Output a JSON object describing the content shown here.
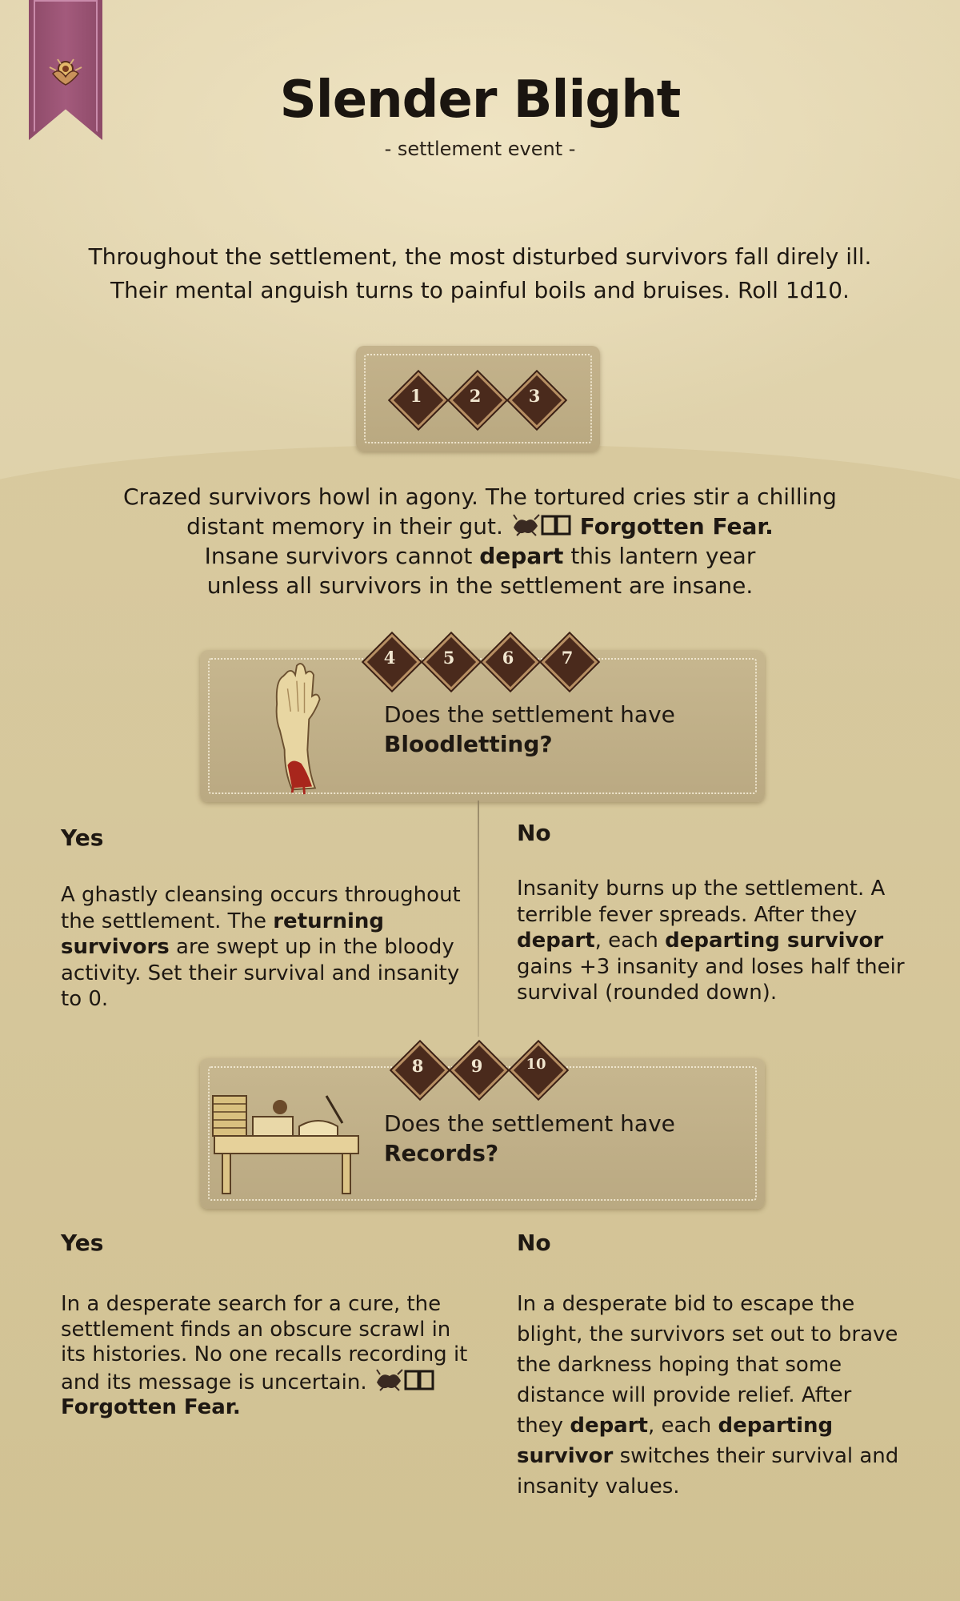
{
  "card": {
    "title": "Slender Blight",
    "subtitle": "- settlement event -",
    "intro_line1": "Throughout the settlement, the most disturbed survivors fall direly ill.",
    "intro_line2": "Their mental anguish turns to painful boils and bruises. Roll 1d10."
  },
  "roll_1_3": {
    "dice": [
      "1",
      "2",
      "3"
    ],
    "line1": "Crazed survivors howl in agony. The tortured cries stir a chilling",
    "line2_pre": "distant memory in their gut.",
    "line2_link": "Forgotten Fear.",
    "line3_pre": "Insane survivors cannot",
    "line3_bold": "depart",
    "line3_post": "this lantern year",
    "line4": "unless all survivors in the settlement are insane."
  },
  "roll_4_7": {
    "dice": [
      "4",
      "5",
      "6",
      "7"
    ],
    "question": "Does the settlement have",
    "question_bold": "Bloodletting?",
    "yes": {
      "heading": "Yes",
      "t1": "A ghastly cleansing occurs throughout the settlement. The",
      "b1": "returning survivors",
      "t2": "are swept up in the bloody activity. Set their survival and insanity to 0."
    },
    "no": {
      "heading": "No",
      "t1": "Insanity burns up the settlement. A terrible fever spreads. After they",
      "b1": "depart",
      "t2": ", each",
      "b2": "departing survivor",
      "t3": "gains +3 insanity and loses half their survival (rounded down)."
    }
  },
  "roll_8_10": {
    "dice": [
      "8",
      "9",
      "10"
    ],
    "question": "Does the settlement have",
    "question_bold": "Records?",
    "yes": {
      "heading": "Yes",
      "t1": "In a desperate search for a cure, the settlement finds an obscure scrawl in its histories. No one recalls recording it and its message is uncertain.",
      "link": "Forgotten Fear."
    },
    "no": {
      "heading": "No",
      "t1": "In a desperate bid to escape the blight, the survivors set out to brave the darkness hoping that some distance will provide relief. After they",
      "b1": "depart",
      "t2": ", each",
      "b2": "departing survivor",
      "t3": "switches their survival and insanity values."
    }
  },
  "icons": {
    "bookmark": "lantern-emblem-icon",
    "story_event": "scorpion-book-icon",
    "bloodletting_illustration": "bleeding-hand-icon",
    "records_illustration": "desk-with-books-icon"
  },
  "colors": {
    "bookmark": "#9a5475",
    "die": "#4a2a1c",
    "box": "#bfae86"
  }
}
